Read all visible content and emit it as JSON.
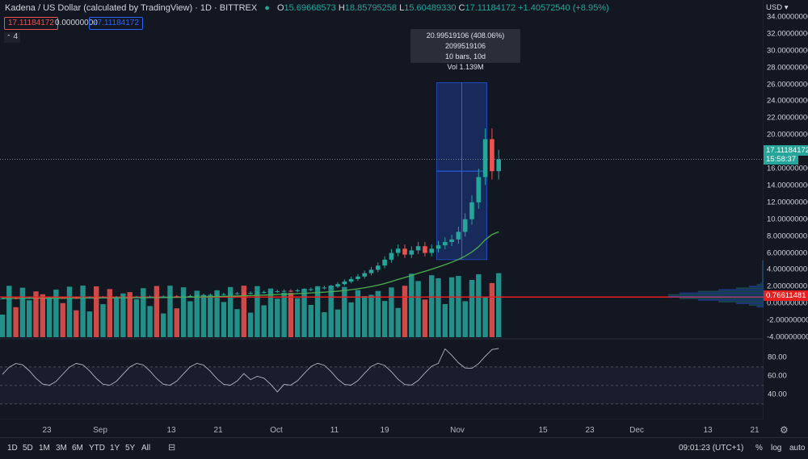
{
  "header": {
    "symbol": "Kadena / US Dollar (calculated by TradingView) · 1D · BITTREX",
    "ohlc": [
      {
        "k": "O",
        "v": "15.69668573"
      },
      {
        "k": "H",
        "v": "18.85795258"
      },
      {
        "k": "L",
        "v": "15.60489330"
      },
      {
        "k": "C",
        "v": "17.11184172"
      },
      {
        "k": "",
        "v": "+1.40572540 (+8.95%)"
      }
    ],
    "sell_price": "17.11184172",
    "spread": "0.00000000",
    "buy_price": "17.11184172",
    "indicator_count": "4"
  },
  "currency": "USD",
  "price_tag": "17.11184172",
  "countdown": "15:58:37",
  "hline_tag": "0.76611481",
  "measure": {
    "line1": "20.99519106 (408.06%) 2099519106",
    "line2": "10 bars, 10d",
    "line3": "Vol 1.139M"
  },
  "bottom": {
    "timeframes": [
      "1D",
      "5D",
      "1M",
      "3M",
      "6M",
      "YTD",
      "1Y",
      "5Y",
      "All"
    ],
    "clock": "09:01:23 (UTC+1)",
    "pct": "%",
    "log": "log",
    "auto": "auto"
  },
  "colors": {
    "up": "#26a69a",
    "down": "#ef5350",
    "ma": "#4caf50",
    "hline": "#e91e1e",
    "measure": "#2962ff"
  },
  "chart_data": {
    "type": "candlestick",
    "price_axis": {
      "ticks": [
        "34.00000000",
        "32.00000000",
        "30.00000000",
        "28.00000000",
        "26.00000000",
        "24.00000000",
        "22.00000000",
        "20.00000000",
        "18.00000000",
        "16.00000000",
        "14.00000000",
        "12.00000000",
        "10.00000000",
        "8.00000000",
        "6.00000000",
        "4.00000000",
        "2.00000000",
        "0.00000000",
        "-2.00000000",
        "-4.00000000"
      ],
      "ylim": [
        -4,
        35
      ]
    },
    "x_ticks": [
      "23",
      "Sep",
      "13",
      "21",
      "Oct",
      "11",
      "19",
      "Nov",
      "15",
      "23",
      "Dec",
      "13",
      "21"
    ],
    "candles_close": [
      0.6,
      0.62,
      0.6,
      0.63,
      0.65,
      0.63,
      0.62,
      0.64,
      0.66,
      0.65,
      0.67,
      0.66,
      0.68,
      0.7,
      0.69,
      0.72,
      0.7,
      0.73,
      0.75,
      0.74,
      0.76,
      0.78,
      0.8,
      0.79,
      0.82,
      0.85,
      0.83,
      0.87,
      0.9,
      0.95,
      1.0,
      1.02,
      1.05,
      1.1,
      1.15,
      1.2,
      1.18,
      1.25,
      1.3,
      1.35,
      1.4,
      1.45,
      1.5,
      1.48,
      1.55,
      1.6,
      1.7,
      1.8,
      1.9,
      2.0,
      2.3,
      2.6,
      2.9,
      3.2,
      3.6,
      4.0,
      4.5,
      5.2,
      6.0,
      6.5,
      5.8,
      6.3,
      6.8,
      6.0,
      6.5,
      6.9,
      7.3,
      7.6,
      8.5,
      10.0,
      12.0,
      15.0,
      19.5,
      15.7,
      17.11
    ],
    "ma_last": 8.5,
    "horizontal_line": 0.76611481,
    "rsi": {
      "ticks": [
        "80.00",
        "60.00",
        "40.00"
      ],
      "ylim": [
        20,
        95
      ],
      "bands": [
        70,
        30
      ]
    }
  }
}
